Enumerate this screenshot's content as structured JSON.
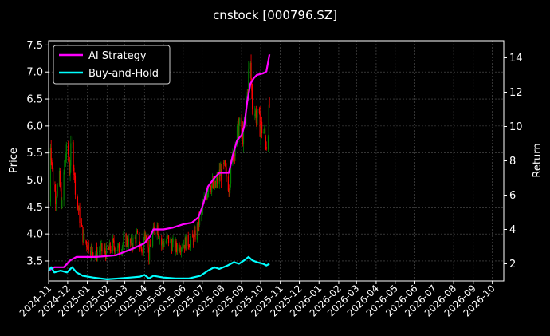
{
  "chart_data": {
    "type": "line",
    "title": "cnstock [000796.SZ]",
    "xlabel": "",
    "ylabel": "Price",
    "ylabel_right": "Return",
    "grid": true,
    "legend": {
      "position": "top-left",
      "entries": [
        "AI Strategy",
        "Buy-and-Hold"
      ]
    },
    "colors": {
      "ai_strategy": "#ff00ff",
      "buy_and_hold": "#00ffff",
      "candle_up": "#008000",
      "candle_down": "#ff0000",
      "background": "#000000",
      "grid": "#555555"
    },
    "xlim": [
      "2024-11-01",
      "2026-10-19"
    ],
    "ylim_left": [
      3.13,
      7.58
    ],
    "ylim_right": [
      1.0,
      15.0
    ],
    "x_ticks": [
      "2024-11",
      "2024-12",
      "2025-01",
      "2025-02",
      "2025-03",
      "2025-04",
      "2025-05",
      "2025-06",
      "2025-07",
      "2025-08",
      "2025-09",
      "2025-10",
      "2025-11",
      "2025-12",
      "2026-01",
      "2026-02",
      "2026-03",
      "2026-04",
      "2026-05",
      "2026-06",
      "2026-07",
      "2026-08",
      "2026-09",
      "2026-10"
    ],
    "y_ticks_left": [
      3.5,
      4.0,
      4.5,
      5.0,
      5.5,
      6.0,
      6.5,
      7.0,
      7.5
    ],
    "y_ticks_right": [
      2,
      4,
      6,
      8,
      10,
      12,
      14
    ],
    "price_path": [
      [
        "2024-11-01",
        4.6
      ],
      [
        "2024-11-04",
        5.7
      ],
      [
        "2024-11-08",
        5.0
      ],
      [
        "2024-11-12",
        4.7
      ],
      [
        "2024-11-18",
        5.0
      ],
      [
        "2024-11-22",
        4.5
      ],
      [
        "2024-11-26",
        5.3
      ],
      [
        "2024-12-01",
        5.6
      ],
      [
        "2024-12-04",
        5.2
      ],
      [
        "2024-12-08",
        5.8
      ],
      [
        "2024-12-12",
        5.0
      ],
      [
        "2024-12-16",
        4.6
      ],
      [
        "2024-12-20",
        4.3
      ],
      [
        "2024-12-26",
        3.9
      ],
      [
        "2025-01-02",
        3.8
      ],
      [
        "2025-01-08",
        3.7
      ],
      [
        "2025-01-15",
        3.65
      ],
      [
        "2025-01-22",
        3.7
      ],
      [
        "2025-02-01",
        3.65
      ],
      [
        "2025-02-10",
        3.8
      ],
      [
        "2025-02-20",
        3.7
      ],
      [
        "2025-03-01",
        3.9
      ],
      [
        "2025-03-10",
        3.8
      ],
      [
        "2025-03-20",
        3.95
      ],
      [
        "2025-03-28",
        3.7
      ],
      [
        "2025-04-03",
        4.1
      ],
      [
        "2025-04-08",
        3.6
      ],
      [
        "2025-04-12",
        3.9
      ],
      [
        "2025-04-20",
        4.2
      ],
      [
        "2025-04-28",
        3.8
      ],
      [
        "2025-05-08",
        3.9
      ],
      [
        "2025-05-18",
        3.75
      ],
      [
        "2025-05-28",
        3.8
      ],
      [
        "2025-06-08",
        3.85
      ],
      [
        "2025-06-18",
        3.9
      ],
      [
        "2025-06-28",
        4.3
      ],
      [
        "2025-07-05",
        4.6
      ],
      [
        "2025-07-12",
        5.0
      ],
      [
        "2025-07-20",
        4.8
      ],
      [
        "2025-07-28",
        5.1
      ],
      [
        "2025-08-05",
        5.2
      ],
      [
        "2025-08-12",
        4.9
      ],
      [
        "2025-08-20",
        5.6
      ],
      [
        "2025-08-28",
        6.0
      ],
      [
        "2025-09-04",
        5.8
      ],
      [
        "2025-09-10",
        6.6
      ],
      [
        "2025-09-14",
        7.3
      ],
      [
        "2025-09-18",
        6.4
      ],
      [
        "2025-09-24",
        6.2
      ],
      [
        "2025-09-30",
        6.0
      ],
      [
        "2025-10-06",
        5.9
      ],
      [
        "2025-10-11",
        5.6
      ],
      [
        "2025-10-15",
        6.4
      ]
    ],
    "series": [
      {
        "name": "AI Strategy",
        "axis": "right",
        "points": [
          [
            "2024-11-01",
            1.6
          ],
          [
            "2024-11-10",
            1.8
          ],
          [
            "2024-11-25",
            1.8
          ],
          [
            "2024-12-05",
            2.2
          ],
          [
            "2024-12-15",
            2.4
          ],
          [
            "2025-01-01",
            2.4
          ],
          [
            "2025-01-15",
            2.4
          ],
          [
            "2025-02-01",
            2.45
          ],
          [
            "2025-02-15",
            2.5
          ],
          [
            "2025-03-01",
            2.7
          ],
          [
            "2025-03-15",
            2.9
          ],
          [
            "2025-04-01",
            3.2
          ],
          [
            "2025-04-10",
            3.6
          ],
          [
            "2025-04-15",
            4.0
          ],
          [
            "2025-05-01",
            4.0
          ],
          [
            "2025-05-15",
            4.1
          ],
          [
            "2025-06-01",
            4.3
          ],
          [
            "2025-06-15",
            4.4
          ],
          [
            "2025-06-25",
            4.7
          ],
          [
            "2025-07-01",
            5.3
          ],
          [
            "2025-07-05",
            5.8
          ],
          [
            "2025-07-10",
            6.5
          ],
          [
            "2025-07-20",
            7.0
          ],
          [
            "2025-07-28",
            7.3
          ],
          [
            "2025-08-05",
            7.3
          ],
          [
            "2025-08-12",
            7.3
          ],
          [
            "2025-08-18",
            8.3
          ],
          [
            "2025-08-25",
            9.2
          ],
          [
            "2025-09-01",
            9.5
          ],
          [
            "2025-09-05",
            10.0
          ],
          [
            "2025-09-10",
            11.5
          ],
          [
            "2025-09-15",
            12.5
          ],
          [
            "2025-09-20",
            12.8
          ],
          [
            "2025-09-25",
            13.0
          ],
          [
            "2025-10-05",
            13.1
          ],
          [
            "2025-10-10",
            13.2
          ],
          [
            "2025-10-15",
            14.2
          ]
        ]
      },
      {
        "name": "Buy-and-Hold",
        "axis": "right",
        "points": [
          [
            "2024-11-01",
            1.6
          ],
          [
            "2024-11-05",
            1.8
          ],
          [
            "2024-11-10",
            1.5
          ],
          [
            "2024-11-20",
            1.6
          ],
          [
            "2024-11-30",
            1.5
          ],
          [
            "2024-12-08",
            1.8
          ],
          [
            "2024-12-15",
            1.5
          ],
          [
            "2024-12-25",
            1.3
          ],
          [
            "2025-01-10",
            1.2
          ],
          [
            "2025-02-01",
            1.1
          ],
          [
            "2025-02-20",
            1.15
          ],
          [
            "2025-03-10",
            1.2
          ],
          [
            "2025-03-25",
            1.25
          ],
          [
            "2025-04-01",
            1.35
          ],
          [
            "2025-04-08",
            1.15
          ],
          [
            "2025-04-15",
            1.3
          ],
          [
            "2025-05-01",
            1.2
          ],
          [
            "2025-05-20",
            1.15
          ],
          [
            "2025-06-10",
            1.15
          ],
          [
            "2025-06-28",
            1.3
          ],
          [
            "2025-07-10",
            1.6
          ],
          [
            "2025-07-20",
            1.8
          ],
          [
            "2025-07-28",
            1.7
          ],
          [
            "2025-08-10",
            1.9
          ],
          [
            "2025-08-20",
            2.1
          ],
          [
            "2025-08-28",
            2.0
          ],
          [
            "2025-09-05",
            2.2
          ],
          [
            "2025-09-12",
            2.4
          ],
          [
            "2025-09-18",
            2.2
          ],
          [
            "2025-09-25",
            2.1
          ],
          [
            "2025-10-05",
            2.0
          ],
          [
            "2025-10-10",
            1.9
          ],
          [
            "2025-10-15",
            2.0
          ]
        ]
      }
    ]
  }
}
